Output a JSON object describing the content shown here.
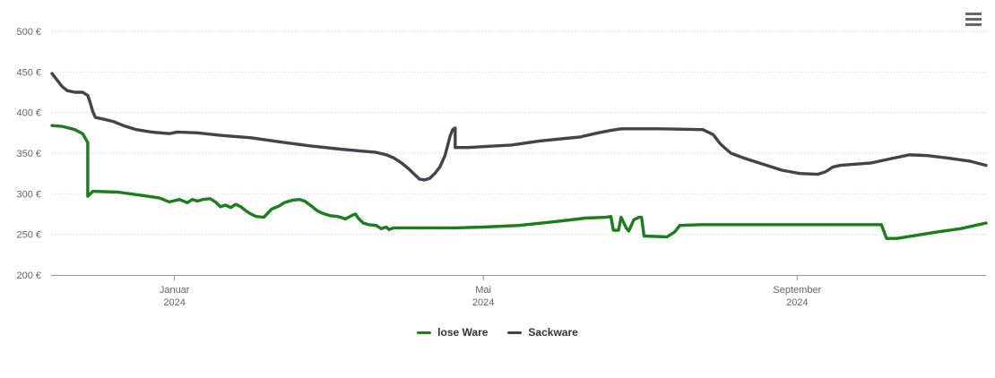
{
  "chart": {
    "background": "#ffffff",
    "axis_line_color": "#999999",
    "menu_icon_color": "#666666"
  },
  "y_axis": {
    "min": 200,
    "max": 500,
    "step": 50,
    "tick_labels": [
      "200 €",
      "250 €",
      "300 €",
      "350 €",
      "400 €",
      "450 €",
      "500 €"
    ],
    "label_color": "#666666",
    "grid_color": "#d9d9d9"
  },
  "x_axis": {
    "start_date": "2023-11-14",
    "end_date": "2024-11-14",
    "label_color": "#666666",
    "ticks": [
      {
        "month": "Januar",
        "year": "2024",
        "date": "2024-01-01"
      },
      {
        "month": "Mai",
        "year": "2024",
        "date": "2024-05-01"
      },
      {
        "month": "September",
        "year": "2024",
        "date": "2024-09-01"
      }
    ]
  },
  "legend": {
    "items": [
      {
        "label": "lose Ware",
        "color": "#1a7f1a"
      },
      {
        "label": "Sackware",
        "color": "#434348"
      }
    ]
  },
  "chart_data": {
    "type": "line",
    "title": "",
    "xlabel": "",
    "ylabel": "",
    "currency": "EUR",
    "ylim": [
      200,
      500
    ],
    "grid": "dotted-horizontal",
    "legend_position": "bottom",
    "series": [
      {
        "name": "lose Ware",
        "color": "#1a7f1a",
        "points": [
          [
            "2023-11-14",
            384
          ],
          [
            "2023-11-18",
            383
          ],
          [
            "2023-11-23",
            379
          ],
          [
            "2023-11-26",
            374
          ],
          [
            "2023-11-28",
            363
          ],
          [
            "2023-11-28",
            297
          ],
          [
            "2023-11-30",
            303
          ],
          [
            "2023-12-10",
            302
          ],
          [
            "2023-12-19",
            298
          ],
          [
            "2023-12-26",
            295
          ],
          [
            "2023-12-30",
            290
          ],
          [
            "2024-01-03",
            293
          ],
          [
            "2024-01-06",
            289
          ],
          [
            "2024-01-08",
            293
          ],
          [
            "2024-01-10",
            291
          ],
          [
            "2024-01-12",
            293
          ],
          [
            "2024-01-15",
            294
          ],
          [
            "2024-01-17",
            290
          ],
          [
            "2024-01-19",
            284
          ],
          [
            "2024-01-21",
            286
          ],
          [
            "2024-01-23",
            283
          ],
          [
            "2024-01-25",
            287
          ],
          [
            "2024-01-27",
            284
          ],
          [
            "2024-01-29",
            279
          ],
          [
            "2024-01-31",
            275
          ],
          [
            "2024-02-02",
            272
          ],
          [
            "2024-02-05",
            271
          ],
          [
            "2024-02-08",
            281
          ],
          [
            "2024-02-11",
            285
          ],
          [
            "2024-02-13",
            289
          ],
          [
            "2024-02-16",
            292
          ],
          [
            "2024-02-19",
            293
          ],
          [
            "2024-02-21",
            291
          ],
          [
            "2024-02-24",
            284
          ],
          [
            "2024-02-26",
            279
          ],
          [
            "2024-02-28",
            276
          ],
          [
            "2024-03-02",
            273
          ],
          [
            "2024-03-05",
            272
          ],
          [
            "2024-03-08",
            269
          ],
          [
            "2024-03-11",
            274
          ],
          [
            "2024-03-12",
            275
          ],
          [
            "2024-03-13",
            270
          ],
          [
            "2024-03-15",
            264
          ],
          [
            "2024-03-17",
            262
          ],
          [
            "2024-03-20",
            261
          ],
          [
            "2024-03-22",
            257
          ],
          [
            "2024-03-24",
            259
          ],
          [
            "2024-03-25",
            256
          ],
          [
            "2024-03-27",
            258
          ],
          [
            "2024-04-05",
            258
          ],
          [
            "2024-04-20",
            258
          ],
          [
            "2024-05-01",
            259
          ],
          [
            "2024-05-15",
            261
          ],
          [
            "2024-05-30",
            266
          ],
          [
            "2024-06-10",
            270
          ],
          [
            "2024-06-18",
            271
          ],
          [
            "2024-06-20",
            272
          ],
          [
            "2024-06-21",
            255
          ],
          [
            "2024-06-23",
            255
          ],
          [
            "2024-06-24",
            271
          ],
          [
            "2024-06-26",
            258
          ],
          [
            "2024-06-27",
            254
          ],
          [
            "2024-06-29",
            268
          ],
          [
            "2024-07-01",
            271
          ],
          [
            "2024-07-02",
            271
          ],
          [
            "2024-07-03",
            248
          ],
          [
            "2024-07-12",
            247
          ],
          [
            "2024-07-15",
            253
          ],
          [
            "2024-07-17",
            261
          ],
          [
            "2024-07-25",
            262
          ],
          [
            "2024-08-15",
            262
          ],
          [
            "2024-09-10",
            262
          ],
          [
            "2024-10-04",
            262
          ],
          [
            "2024-10-06",
            245
          ],
          [
            "2024-10-10",
            245
          ],
          [
            "2024-10-18",
            249
          ],
          [
            "2024-10-26",
            253
          ],
          [
            "2024-11-04",
            257
          ],
          [
            "2024-11-14",
            264
          ]
        ]
      },
      {
        "name": "Sackware",
        "color": "#434348",
        "points": [
          [
            "2023-11-14",
            448
          ],
          [
            "2023-11-16",
            440
          ],
          [
            "2023-11-18",
            432
          ],
          [
            "2023-11-20",
            427
          ],
          [
            "2023-11-23",
            425
          ],
          [
            "2023-11-26",
            425
          ],
          [
            "2023-11-28",
            421
          ],
          [
            "2023-11-29",
            412
          ],
          [
            "2023-11-30",
            401
          ],
          [
            "2023-12-01",
            394
          ],
          [
            "2023-12-04",
            392
          ],
          [
            "2023-12-08",
            389
          ],
          [
            "2023-12-12",
            384
          ],
          [
            "2023-12-17",
            379
          ],
          [
            "2023-12-23",
            376
          ],
          [
            "2023-12-30",
            374
          ],
          [
            "2024-01-02",
            376
          ],
          [
            "2024-01-10",
            375
          ],
          [
            "2024-01-19",
            372
          ],
          [
            "2024-01-31",
            369
          ],
          [
            "2024-02-11",
            364
          ],
          [
            "2024-02-23",
            359
          ],
          [
            "2024-03-06",
            355
          ],
          [
            "2024-03-13",
            353
          ],
          [
            "2024-03-20",
            351
          ],
          [
            "2024-03-24",
            348
          ],
          [
            "2024-03-27",
            344
          ],
          [
            "2024-03-30",
            338
          ],
          [
            "2024-04-02",
            330
          ],
          [
            "2024-04-04",
            324
          ],
          [
            "2024-04-06",
            318
          ],
          [
            "2024-04-08",
            317
          ],
          [
            "2024-04-10",
            319
          ],
          [
            "2024-04-12",
            325
          ],
          [
            "2024-04-14",
            333
          ],
          [
            "2024-04-16",
            347
          ],
          [
            "2024-04-17",
            359
          ],
          [
            "2024-04-18",
            371
          ],
          [
            "2024-04-19",
            379
          ],
          [
            "2024-04-20",
            381
          ],
          [
            "2024-04-20",
            357
          ],
          [
            "2024-04-25",
            357
          ],
          [
            "2024-05-01",
            358
          ],
          [
            "2024-05-12",
            360
          ],
          [
            "2024-05-23",
            365
          ],
          [
            "2024-06-08",
            370
          ],
          [
            "2024-06-15",
            375
          ],
          [
            "2024-06-20",
            378
          ],
          [
            "2024-06-24",
            380
          ],
          [
            "2024-07-10",
            380
          ],
          [
            "2024-07-26",
            379
          ],
          [
            "2024-07-30",
            373
          ],
          [
            "2024-08-02",
            361
          ],
          [
            "2024-08-06",
            350
          ],
          [
            "2024-08-11",
            344
          ],
          [
            "2024-08-18",
            337
          ],
          [
            "2024-08-26",
            329
          ],
          [
            "2024-09-02",
            325
          ],
          [
            "2024-09-09",
            324
          ],
          [
            "2024-09-12",
            327
          ],
          [
            "2024-09-15",
            333
          ],
          [
            "2024-09-18",
            335
          ],
          [
            "2024-09-30",
            338
          ],
          [
            "2024-10-09",
            344
          ],
          [
            "2024-10-15",
            348
          ],
          [
            "2024-10-22",
            347
          ],
          [
            "2024-10-30",
            344
          ],
          [
            "2024-11-08",
            340
          ],
          [
            "2024-11-14",
            335
          ]
        ]
      }
    ]
  }
}
